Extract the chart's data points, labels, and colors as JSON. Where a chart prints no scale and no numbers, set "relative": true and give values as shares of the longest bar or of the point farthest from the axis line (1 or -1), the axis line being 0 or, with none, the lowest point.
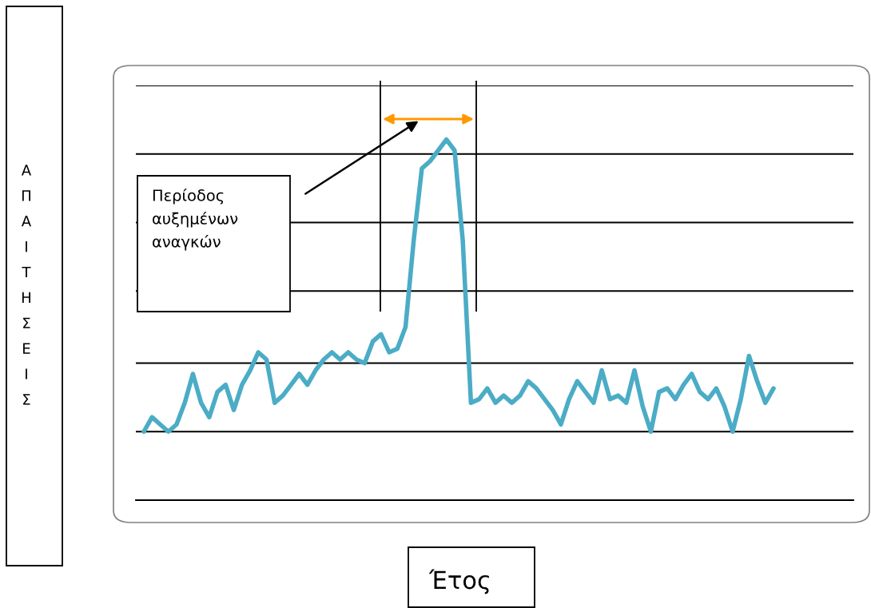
{
  "chart_data": {
    "type": "line",
    "relative": true,
    "ylabel": "ΑΠΑΙΤΗΣΕΙΣ",
    "annotations": [
      "Περίοδος αυξημένων αναγκών",
      "Έτος"
    ],
    "categories": [
      null,
      null,
      null,
      null,
      null,
      null,
      null,
      null,
      null,
      null,
      null,
      null,
      null,
      null,
      null,
      null,
      null,
      null,
      null,
      null,
      null,
      null,
      null,
      null,
      null,
      null,
      null,
      null,
      null,
      null,
      null,
      null,
      null,
      null,
      null,
      null,
      null,
      null,
      null,
      null,
      null,
      null,
      null,
      null,
      null,
      null,
      null,
      null,
      null,
      null,
      null,
      null,
      null,
      null,
      null,
      null,
      null,
      null,
      null,
      null,
      null,
      null,
      null,
      null,
      null,
      null,
      null,
      null,
      null,
      null,
      null,
      null,
      null,
      null,
      null,
      null,
      null,
      null
    ],
    "series": [
      {
        "color": "#4bacc6",
        "values": [
          0.19,
          0.23,
          0.21,
          0.19,
          0.21,
          0.27,
          0.35,
          0.27,
          0.23,
          0.3,
          0.32,
          0.25,
          0.32,
          0.36,
          0.41,
          0.39,
          0.27,
          0.29,
          0.32,
          0.35,
          0.32,
          0.36,
          0.39,
          0.41,
          0.39,
          0.41,
          0.39,
          0.38,
          0.44,
          0.46,
          0.41,
          0.42,
          0.48,
          0.72,
          0.92,
          0.94,
          0.97,
          1.0,
          0.97,
          0.72,
          0.27,
          0.28,
          0.31,
          0.27,
          0.29,
          0.27,
          0.29,
          0.33,
          0.31,
          0.28,
          0.25,
          0.21,
          0.28,
          0.33,
          0.3,
          0.27,
          0.36,
          0.28,
          0.29,
          0.27,
          0.36,
          0.26,
          0.19,
          0.3,
          0.31,
          0.28,
          0.32,
          0.35,
          0.3,
          0.28,
          0.31,
          0.26,
          0.19,
          0.28,
          0.4,
          0.33,
          0.27,
          0.31
        ]
      }
    ],
    "ref_lines": [
      {
        "axis": "y",
        "value": 0.19,
        "color": "#000000"
      },
      {
        "axis": "y",
        "value": 0.38,
        "color": "#000000"
      },
      {
        "axis": "y",
        "value": 0.58,
        "color": "#000000"
      },
      {
        "axis": "y",
        "value": 0.77,
        "color": "#000000"
      },
      {
        "axis": "y",
        "value": 0.96,
        "color": "#000000"
      },
      {
        "axis": "y",
        "value": 1.15,
        "color": "#000000"
      }
    ],
    "legend": false,
    "line_style": "solid",
    "marker": "none"
  }
}
